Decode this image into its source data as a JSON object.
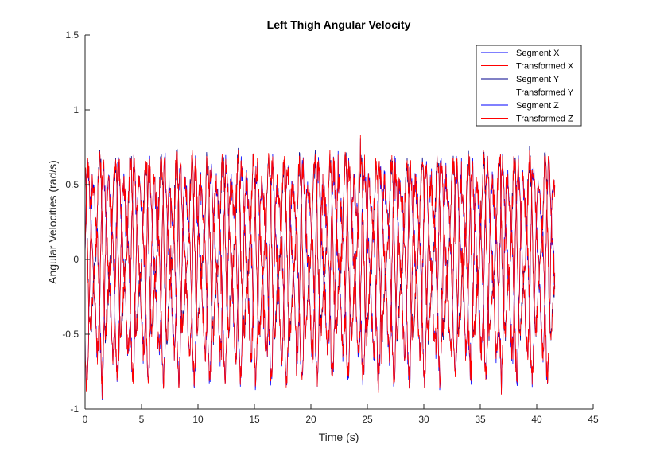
{
  "chart_data": {
    "type": "line",
    "title": "Left Thigh Angular Velocity",
    "xlabel": "Time (s)",
    "ylabel": "Angular Velocities (rad/s)",
    "xlim": [
      0,
      45
    ],
    "ylim": [
      -1,
      1.5
    ],
    "xticks": [
      0,
      5,
      10,
      15,
      20,
      25,
      30,
      35,
      40,
      45
    ],
    "yticks": [
      -1,
      -0.5,
      0,
      0.5,
      1,
      1.5
    ],
    "xtick_labels": [
      "0",
      "5",
      "10",
      "15",
      "20",
      "25",
      "30",
      "35",
      "40",
      "45"
    ],
    "ytick_labels": [
      "-1",
      "-0.5",
      "0",
      "0.5",
      "1",
      "1.5"
    ],
    "grid": false,
    "legend_position": "top-right",
    "x_end": 41.6,
    "series": [
      {
        "name": "Segment X",
        "color": "#0000ff",
        "amplitude": 0.55,
        "offset": 0.0,
        "period": 1.36,
        "phase": 0.0
      },
      {
        "name": "Transformed X",
        "color": "#ff0000",
        "amplitude": 0.55,
        "offset": 0.0,
        "period": 1.36,
        "phase": 0.0
      },
      {
        "name": "Segment Y",
        "color": "#00008b",
        "amplitude": 0.5,
        "offset": 0.05,
        "period": 1.36,
        "phase": 2.1
      },
      {
        "name": "Transformed Y",
        "color": "#ff0000",
        "amplitude": 0.5,
        "offset": 0.05,
        "period": 1.36,
        "phase": 2.1
      },
      {
        "name": "Segment Z",
        "color": "#0000ff",
        "amplitude": 0.6,
        "offset": -0.05,
        "period": 1.36,
        "phase": 4.2
      },
      {
        "name": "Transformed Z",
        "color": "#ff0000",
        "amplitude": 0.6,
        "offset": -0.05,
        "period": 1.36,
        "phase": 4.2
      }
    ]
  }
}
